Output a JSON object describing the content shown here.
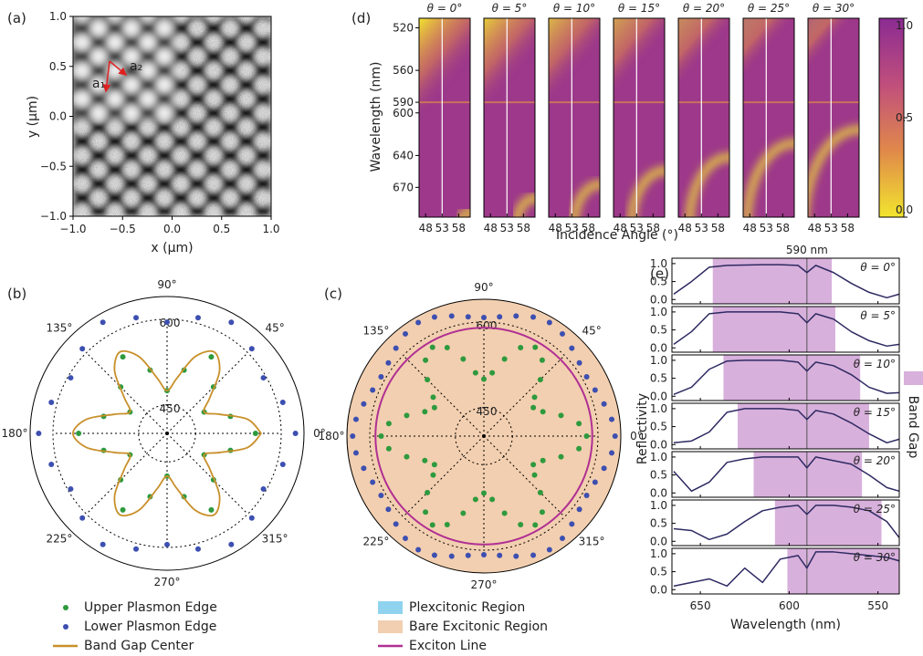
{
  "chart_data": [
    {
      "type": "image",
      "panel_label": "(a)",
      "xlabel": "x (μm)",
      "ylabel": "y (μm)",
      "xlim": [
        -1,
        1
      ],
      "ylim": [
        -1,
        1
      ],
      "xticks": [
        {
          "value": -1,
          "label": "−1.0"
        },
        {
          "value": -0.5,
          "label": "−0.5"
        },
        {
          "value": 0,
          "label": "0.0"
        },
        {
          "value": 0.5,
          "label": "0.5"
        },
        {
          "value": 1,
          "label": "1.0"
        }
      ],
      "yticks": [
        {
          "value": -1,
          "label": "−1.0"
        },
        {
          "value": -0.5,
          "label": "−0.5"
        },
        {
          "value": 0,
          "label": "0.0"
        },
        {
          "value": 0.5,
          "label": "0.5"
        },
        {
          "value": 1,
          "label": "1.0"
        }
      ],
      "annotations": [
        "a₁",
        "a₂"
      ]
    },
    {
      "type": "heatmap",
      "panel_label": "(d)",
      "xlabel": "Incidence Angle (°)",
      "ylabel": "Wavelength (nm)",
      "titles": [
        "θ = 0°",
        "θ = 5°",
        "θ = 10°",
        "θ = 15°",
        "θ = 20°",
        "θ = 25°",
        "θ = 30°"
      ],
      "xlim": [
        46,
        61.5
      ],
      "ylim": [
        511,
        698
      ],
      "xticks": [
        48,
        53,
        58
      ],
      "yticks": [
        520,
        560,
        590,
        600,
        640,
        670
      ],
      "vline": 53,
      "hline": 590,
      "colorbar": {
        "lim": [
          0,
          1
        ],
        "ticks": [
          {
            "value": 0,
            "label": "0.0"
          },
          {
            "value": 0.5,
            "label": "0.5"
          },
          {
            "value": 1,
            "label": "1.0"
          }
        ],
        "colors": [
          "#f2e52e",
          "#e0894a",
          "#c04f7c",
          "#8b2b93"
        ]
      }
    },
    {
      "type": "polar",
      "panel_label": "(b)",
      "rlim": [
        400,
        640
      ],
      "rticks": [
        450,
        600
      ],
      "thetaticks": [
        {
          "value": 0,
          "label": "0°"
        },
        {
          "value": 45,
          "label": "45°"
        },
        {
          "value": 90,
          "label": "90°"
        },
        {
          "value": 135,
          "label": "135°"
        },
        {
          "value": 180,
          "label": "180°"
        },
        {
          "value": 225,
          "label": "225°"
        },
        {
          "value": 270,
          "label": "270°"
        },
        {
          "value": 315,
          "label": "315°"
        }
      ],
      "series": [
        {
          "name": "Upper Plasmon Edge",
          "color": "#2e9a3e",
          "style": "points",
          "theta": [
            0,
            15,
            30,
            45,
            60,
            75,
            90,
            105,
            120,
            135,
            150,
            165,
            180,
            195,
            210,
            225,
            240,
            255,
            270,
            285,
            300,
            315,
            330,
            345
          ],
          "values": [
            555,
            515,
            475,
            515,
            555,
            515,
            475,
            515,
            555,
            515,
            475,
            515,
            555,
            515,
            475,
            515,
            555,
            515,
            475,
            515,
            555,
            515,
            475,
            515
          ]
        },
        {
          "name": "Lower Plasmon Edge",
          "color": "#3d4fb0",
          "style": "points",
          "theta": [
            0,
            15,
            30,
            45,
            60,
            75,
            90,
            105,
            120,
            135,
            150,
            165,
            180,
            195,
            210,
            225,
            240,
            255,
            270,
            285,
            300,
            315,
            330,
            345
          ],
          "values": [
            625,
            610,
            595,
            610,
            625,
            610,
            595,
            610,
            625,
            610,
            595,
            610,
            625,
            610,
            595,
            610,
            625,
            610,
            595,
            610,
            625,
            610,
            595,
            610
          ]
        },
        {
          "name": "Band Gap Center",
          "color": "#c8902a",
          "style": "line",
          "theta": [
            0,
            10,
            20,
            30,
            40,
            50,
            60,
            70,
            80,
            90,
            100,
            110,
            120,
            130,
            140,
            150,
            160,
            170,
            180,
            190,
            200,
            210,
            220,
            230,
            240,
            250,
            260,
            270,
            280,
            290,
            300,
            310,
            320,
            330,
            340,
            350,
            360
          ],
          "values": [
            565,
            543,
            498,
            475,
            498,
            543,
            565,
            543,
            498,
            475,
            498,
            543,
            565,
            543,
            498,
            475,
            498,
            543,
            565,
            543,
            498,
            475,
            498,
            543,
            565,
            543,
            498,
            475,
            498,
            543,
            565,
            543,
            498,
            475,
            498,
            543,
            565
          ]
        }
      ]
    },
    {
      "type": "polar",
      "panel_label": "(c)",
      "rlim": [
        400,
        640
      ],
      "rticks": [
        450,
        600
      ],
      "thetaticks": [
        {
          "value": 0,
          "label": "0°"
        },
        {
          "value": 45,
          "label": "45°"
        },
        {
          "value": 90,
          "label": "90°"
        },
        {
          "value": 135,
          "label": "135°"
        },
        {
          "value": 180,
          "label": "180°"
        },
        {
          "value": 225,
          "label": "225°"
        },
        {
          "value": 270,
          "label": "270°"
        },
        {
          "value": 315,
          "label": "315°"
        }
      ],
      "regions": [
        {
          "name": "Plexcitonic Region",
          "color": "#8fd3ef",
          "visible": false
        },
        {
          "name": "Bare Excitonic Region",
          "color": "#f2cfb0",
          "visible": true
        }
      ],
      "series": [
        {
          "name": "Exciton Line",
          "color": "#b02f93",
          "style": "circle",
          "r": 590
        },
        {
          "color": "#2e9a3e",
          "style": "points",
          "theta": [
            0,
            7.5,
            15,
            22.5,
            30,
            37.5,
            45,
            52.5,
            60,
            67.5,
            75,
            82.5,
            90,
            97.5,
            105,
            112.5,
            120,
            127.5,
            135,
            142.5,
            150,
            157.5,
            165,
            172.5,
            180,
            187.5,
            195,
            202.5,
            210,
            217.5,
            225,
            232.5,
            240,
            247.5,
            255,
            262.5,
            270,
            277.5,
            285,
            292.5,
            300,
            307.5,
            315,
            322.5,
            330,
            337.5,
            345,
            352.5
          ],
          "values": [
            580,
            568,
            540,
            512,
            500,
            512,
            540,
            568,
            580,
            568,
            540,
            512,
            500,
            512,
            540,
            568,
            580,
            568,
            540,
            512,
            500,
            512,
            540,
            568,
            580,
            568,
            540,
            512,
            500,
            512,
            540,
            568,
            580,
            568,
            540,
            512,
            500,
            512,
            540,
            568,
            580,
            568,
            540,
            512,
            500,
            512,
            540,
            568
          ]
        },
        {
          "color": "#3d4fb0",
          "style": "points",
          "theta": [
            0,
            7.5,
            15,
            22.5,
            30,
            37.5,
            45,
            52.5,
            60,
            67.5,
            75,
            82.5,
            90,
            97.5,
            105,
            112.5,
            120,
            127.5,
            135,
            142.5,
            150,
            157.5,
            165,
            172.5,
            180,
            187.5,
            195,
            202.5,
            210,
            217.5,
            225,
            232.5,
            240,
            247.5,
            255,
            262.5,
            270,
            277.5,
            285,
            292.5,
            300,
            307.5,
            315,
            322.5,
            330,
            337.5,
            345,
            352.5
          ],
          "values": [
            630,
            626,
            618,
            611,
            608,
            611,
            618,
            626,
            630,
            626,
            618,
            611,
            608,
            611,
            618,
            626,
            630,
            626,
            618,
            611,
            608,
            611,
            618,
            626,
            630,
            626,
            618,
            611,
            608,
            611,
            618,
            626,
            630,
            626,
            618,
            611,
            608,
            611,
            618,
            626,
            630,
            626,
            618,
            611,
            608,
            611,
            618,
            626
          ]
        }
      ]
    },
    {
      "type": "line",
      "panel_label": "(e)",
      "xlabel": "Wavelength (nm)",
      "ylabel": "Reflectivity",
      "xlim": [
        666,
        538
      ],
      "ylim": [
        -0.12,
        1.15
      ],
      "xticks": [
        650,
        600,
        550
      ],
      "yticks": [
        {
          "value": 0,
          "label": "0.0"
        },
        {
          "value": 0.5,
          "label": "0.5"
        },
        {
          "value": 1,
          "label": "1.0"
        }
      ],
      "vline": 590,
      "annotation": "590 nm",
      "band_label": "Band Gap",
      "band_color": "#d8b0dc",
      "line_color": "#2e2a62",
      "x": [
        665,
        655,
        645,
        635,
        625,
        615,
        605,
        595,
        590,
        585,
        575,
        565,
        555,
        545,
        538
      ],
      "panels": [
        {
          "title": "θ = 0°",
          "band": [
            643,
            576
          ],
          "values": [
            0.15,
            0.5,
            0.9,
            0.95,
            0.96,
            0.97,
            0.97,
            0.95,
            0.75,
            0.95,
            0.75,
            0.45,
            0.2,
            0.05,
            0.15
          ]
        },
        {
          "title": "θ = 5°",
          "band": [
            643,
            574
          ],
          "values": [
            0.1,
            0.45,
            0.95,
            1.0,
            1.0,
            1.0,
            1.0,
            0.95,
            0.7,
            0.95,
            0.8,
            0.45,
            0.2,
            0.05,
            0.1
          ]
        },
        {
          "title": "θ = 10°",
          "band": [
            637,
            560
          ],
          "values": [
            0.05,
            0.25,
            0.75,
            0.98,
            1.0,
            1.0,
            1.0,
            0.95,
            0.7,
            0.95,
            0.85,
            0.6,
            0.25,
            0.08,
            0.1
          ]
        },
        {
          "title": "θ = 15°",
          "band": [
            629,
            555
          ],
          "values": [
            0.05,
            0.1,
            0.35,
            0.9,
            1.0,
            1.0,
            1.0,
            0.95,
            0.7,
            0.95,
            0.85,
            0.6,
            0.3,
            0.05,
            0.15
          ]
        },
        {
          "title": "θ = 20°",
          "band": [
            620,
            559
          ],
          "values": [
            0.6,
            0.05,
            0.3,
            0.85,
            0.95,
            1.0,
            1.0,
            1.0,
            0.7,
            1.0,
            0.9,
            0.8,
            0.5,
            0.15,
            0.05
          ]
        },
        {
          "title": "θ = 25°",
          "band": [
            608,
            548
          ],
          "values": [
            0.35,
            0.3,
            0.05,
            0.2,
            0.55,
            0.85,
            0.95,
            1.0,
            0.75,
            1.0,
            1.0,
            0.95,
            0.85,
            0.55,
            0.1
          ]
        },
        {
          "title": "θ = 30°",
          "band": [
            601,
            538
          ],
          "values": [
            0.1,
            0.2,
            0.3,
            0.1,
            0.6,
            0.2,
            0.85,
            0.95,
            0.6,
            1.05,
            1.05,
            1.0,
            0.95,
            0.9,
            0.8
          ]
        }
      ]
    }
  ]
}
